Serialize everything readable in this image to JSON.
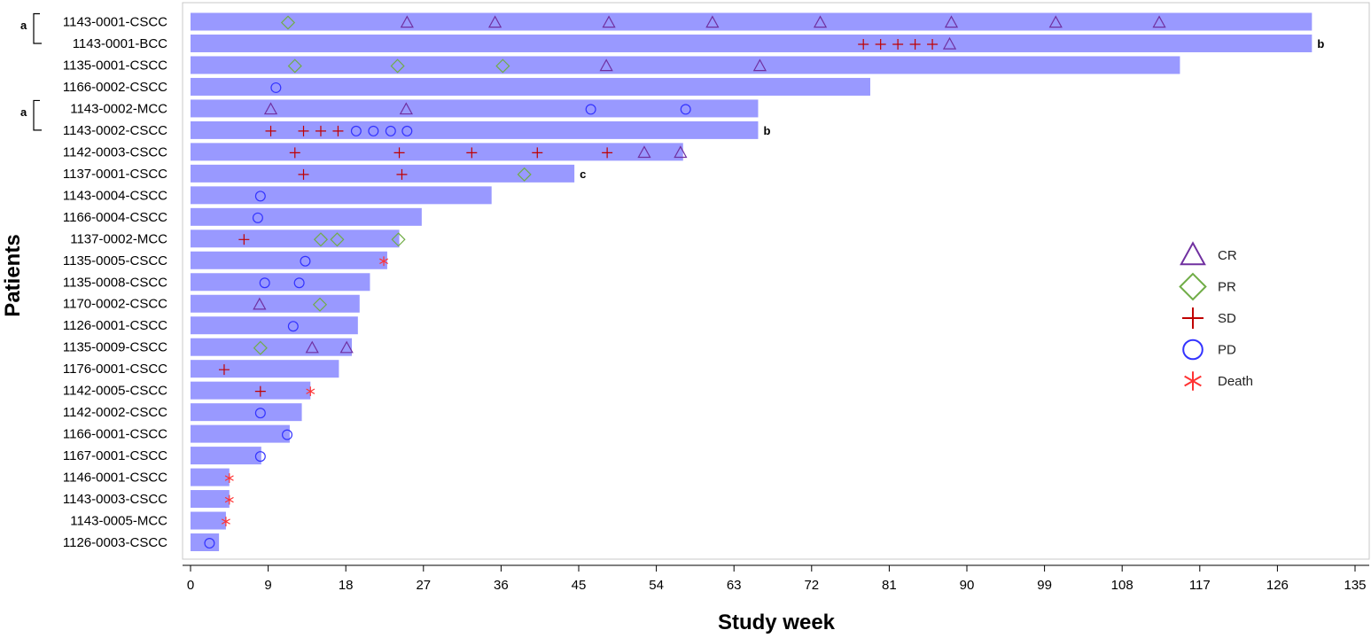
{
  "chart_data": {
    "type": "bar",
    "orientation": "horizontal",
    "xlabel": "Study week",
    "ylabel": "Patients",
    "xlim": [
      0,
      135
    ],
    "xticks": [
      0,
      9,
      18,
      27,
      36,
      45,
      54,
      63,
      72,
      81,
      90,
      99,
      108,
      117,
      126,
      135
    ],
    "grid": false,
    "legend_position": "right",
    "colors": {
      "bar": "#9999ff",
      "CR": "#7030a0",
      "PR": "#70ad47",
      "SD": "#c00000",
      "PD": "#3333ff",
      "Death": "#ff3333"
    },
    "legend": [
      {
        "key": "CR",
        "label": "CR",
        "marker": "triangle"
      },
      {
        "key": "PR",
        "label": "PR",
        "marker": "diamond"
      },
      {
        "key": "SD",
        "label": "SD",
        "marker": "plus"
      },
      {
        "key": "PD",
        "label": "PD",
        "marker": "circle"
      },
      {
        "key": "Death",
        "label": "Death",
        "marker": "asterisk"
      }
    ],
    "brackets": [
      {
        "label": "a",
        "rows": [
          0,
          1
        ]
      },
      {
        "label": "a",
        "rows": [
          4,
          5
        ]
      }
    ],
    "patients": [
      {
        "id": "1143-0001-CSCC",
        "weeks": 130,
        "note": "",
        "events": [
          [
            "PR",
            11.3
          ],
          [
            "CR",
            25.1
          ],
          [
            "CR",
            35.3
          ],
          [
            "CR",
            48.5
          ],
          [
            "CR",
            60.5
          ],
          [
            "CR",
            73
          ],
          [
            "CR",
            88.2
          ],
          [
            "CR",
            100.3
          ],
          [
            "CR",
            112.3
          ]
        ]
      },
      {
        "id": "1143-0001-BCC",
        "weeks": 130,
        "note": "b",
        "events": [
          [
            "SD",
            78
          ],
          [
            "SD",
            80
          ],
          [
            "SD",
            82
          ],
          [
            "SD",
            84
          ],
          [
            "SD",
            86
          ],
          [
            "CR",
            88
          ]
        ]
      },
      {
        "id": "1135-0001-CSCC",
        "weeks": 114.7,
        "note": "",
        "events": [
          [
            "PR",
            12.1
          ],
          [
            "PR",
            24
          ],
          [
            "PR",
            36.2
          ],
          [
            "CR",
            48.2
          ],
          [
            "CR",
            66
          ]
        ]
      },
      {
        "id": "1166-0002-CSCC",
        "weeks": 78.8,
        "note": "",
        "events": [
          [
            "PD",
            9.9
          ]
        ]
      },
      {
        "id": "1143-0002-MCC",
        "weeks": 65.8,
        "note": "",
        "events": [
          [
            "CR",
            9.3
          ],
          [
            "CR",
            25
          ],
          [
            "PD",
            46.4
          ],
          [
            "PD",
            57.4
          ]
        ]
      },
      {
        "id": "1143-0002-CSCC",
        "weeks": 65.8,
        "note": "b",
        "events": [
          [
            "SD",
            9.3
          ],
          [
            "SD",
            13.1
          ],
          [
            "SD",
            15.1
          ],
          [
            "SD",
            17.1
          ],
          [
            "PD",
            19.2
          ],
          [
            "PD",
            21.2
          ],
          [
            "PD",
            23.2
          ],
          [
            "PD",
            25.1
          ]
        ]
      },
      {
        "id": "1142-0003-CSCC",
        "weeks": 57.1,
        "note": "",
        "events": [
          [
            "SD",
            12.1
          ],
          [
            "SD",
            24.2
          ],
          [
            "SD",
            32.6
          ],
          [
            "SD",
            40.2
          ],
          [
            "SD",
            48.3
          ],
          [
            "CR",
            52.6
          ],
          [
            "CR",
            56.8
          ]
        ]
      },
      {
        "id": "1137-0001-CSCC",
        "weeks": 44.5,
        "note": "c",
        "events": [
          [
            "SD",
            13.1
          ],
          [
            "SD",
            24.5
          ],
          [
            "PR",
            38.7
          ]
        ]
      },
      {
        "id": "1143-0004-CSCC",
        "weeks": 34.9,
        "note": "",
        "events": [
          [
            "PD",
            8.1
          ]
        ]
      },
      {
        "id": "1166-0004-CSCC",
        "weeks": 26.8,
        "note": "",
        "events": [
          [
            "PD",
            7.8
          ]
        ]
      },
      {
        "id": "1137-0002-MCC",
        "weeks": 24.2,
        "note": "",
        "events": [
          [
            "SD",
            6.2
          ],
          [
            "PR",
            15.1
          ],
          [
            "PR",
            17
          ],
          [
            "PR",
            24.1
          ]
        ]
      },
      {
        "id": "1135-0005-CSCC",
        "weeks": 22.8,
        "note": "",
        "events": [
          [
            "PD",
            13.3
          ],
          [
            "Death",
            22.4
          ]
        ]
      },
      {
        "id": "1135-0008-CSCC",
        "weeks": 20.8,
        "note": "",
        "events": [
          [
            "PD",
            8.6
          ],
          [
            "PD",
            12.6
          ]
        ]
      },
      {
        "id": "1170-0002-CSCC",
        "weeks": 19.6,
        "note": "",
        "events": [
          [
            "CR",
            8
          ],
          [
            "PR",
            15
          ]
        ]
      },
      {
        "id": "1126-0001-CSCC",
        "weeks": 19.4,
        "note": "",
        "events": [
          [
            "PD",
            11.9
          ]
        ]
      },
      {
        "id": "1135-0009-CSCC",
        "weeks": 18.7,
        "note": "",
        "events": [
          [
            "PR",
            8.1
          ],
          [
            "CR",
            14.1
          ],
          [
            "CR",
            18.1
          ]
        ]
      },
      {
        "id": "1176-0001-CSCC",
        "weeks": 17.2,
        "note": "",
        "events": [
          [
            "SD",
            3.9
          ]
        ]
      },
      {
        "id": "1142-0005-CSCC",
        "weeks": 13.9,
        "note": "",
        "events": [
          [
            "SD",
            8.1
          ],
          [
            "Death",
            13.9
          ]
        ]
      },
      {
        "id": "1142-0002-CSCC",
        "weeks": 12.9,
        "note": "",
        "events": [
          [
            "PD",
            8.1
          ]
        ]
      },
      {
        "id": "1166-0001-CSCC",
        "weeks": 11.5,
        "note": "",
        "events": [
          [
            "PD",
            11.2
          ]
        ]
      },
      {
        "id": "1167-0001-CSCC",
        "weeks": 8.2,
        "note": "",
        "events": [
          [
            "PD",
            8.1
          ]
        ]
      },
      {
        "id": "1146-0001-CSCC",
        "weeks": 4.5,
        "note": "",
        "events": [
          [
            "Death",
            4.5
          ]
        ]
      },
      {
        "id": "1143-0003-CSCC",
        "weeks": 4.5,
        "note": "",
        "events": [
          [
            "Death",
            4.5
          ]
        ]
      },
      {
        "id": "1143-0005-MCC",
        "weeks": 4.1,
        "note": "",
        "events": [
          [
            "Death",
            4.1
          ]
        ]
      },
      {
        "id": "1126-0003-CSCC",
        "weeks": 3.3,
        "note": "",
        "events": [
          [
            "PD",
            2.2
          ]
        ]
      }
    ]
  }
}
